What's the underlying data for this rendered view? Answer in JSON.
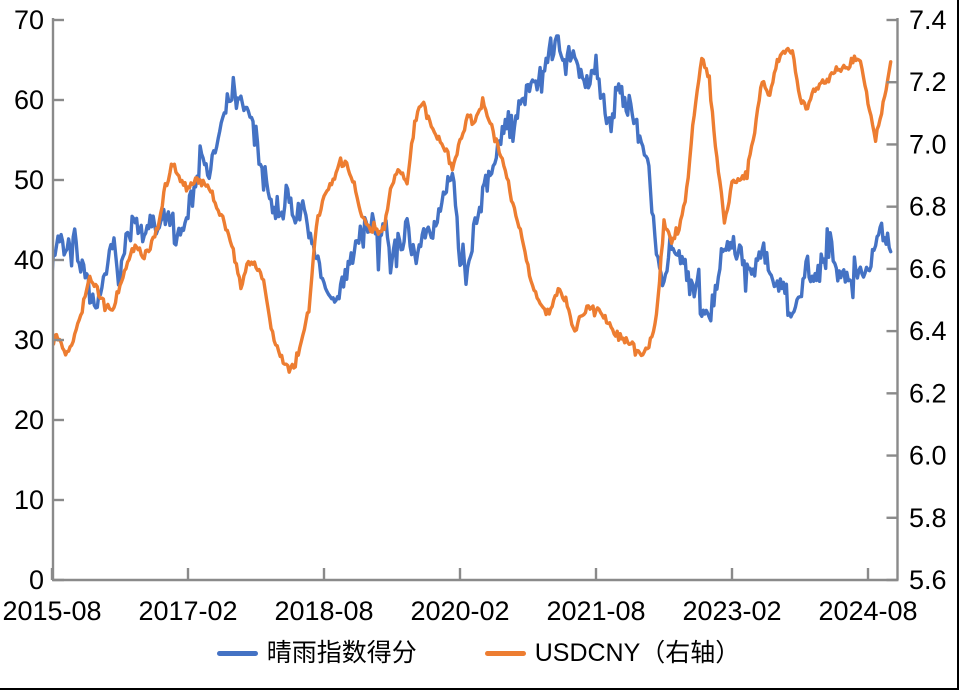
{
  "style": {
    "background": "#ffffff",
    "axis_color": "#8a8a8a",
    "label_color": "#000000",
    "page_border_color": "#000000",
    "series_blue": "#4472C4",
    "series_orange": "#ED7D31"
  },
  "legend": {
    "items": [
      {
        "label": "晴雨指数得分",
        "color": "#4472C4"
      },
      {
        "label": "USDCNY（右轴）",
        "color": "#ED7D31"
      }
    ]
  },
  "chart_data": {
    "type": "line",
    "title": "",
    "grid": false,
    "legend_position": "bottom-center",
    "x_axis": {
      "start_month": "2015-08",
      "end_month": "2024-11",
      "tick_labels": [
        "2015-08",
        "2017-02",
        "2018-08",
        "2020-02",
        "2021-08",
        "2023-02",
        "2024-08"
      ],
      "months_between_ticks": 18
    },
    "left_axis": {
      "min": 0,
      "max": 70,
      "ticks": [
        0,
        10,
        20,
        30,
        40,
        50,
        60,
        70
      ]
    },
    "right_axis": {
      "min": 5.6,
      "max": 7.4,
      "ticks": [
        5.6,
        5.8,
        6.0,
        6.2,
        6.4,
        6.6,
        6.8,
        7.0,
        7.2,
        7.4
      ]
    },
    "series": [
      {
        "name": "晴雨指数得分",
        "axis": "left",
        "color": "#4472C4",
        "start_month": "2015-08",
        "frequency": "monthly",
        "values": [
          40,
          43,
          41,
          43,
          39,
          35,
          33,
          38,
          42,
          39,
          43,
          45,
          42,
          45,
          43,
          46,
          44,
          43,
          46,
          50,
          53,
          51,
          55,
          59,
          61,
          60,
          58,
          55,
          50,
          47,
          46,
          48,
          45,
          47,
          43,
          40,
          37,
          35,
          36,
          39,
          41,
          43,
          45,
          42,
          45,
          40,
          42,
          44,
          41,
          43,
          42,
          45,
          49,
          51,
          41,
          38,
          44,
          48,
          51,
          54,
          57,
          56,
          59,
          62,
          61,
          63,
          66,
          67,
          65,
          66,
          63,
          62,
          64,
          60,
          57,
          62,
          60,
          58,
          55,
          52,
          41,
          38,
          42,
          41,
          38,
          37,
          34,
          33,
          37,
          42,
          43,
          41,
          38,
          39,
          41,
          38,
          37,
          36,
          33,
          36,
          39,
          37,
          40,
          42,
          38,
          39,
          37,
          40,
          38,
          42,
          44,
          40
        ]
      },
      {
        "name": "USDCNY（右轴）",
        "axis": "right",
        "color": "#ED7D31",
        "start_month": "2015-08",
        "frequency": "monthly",
        "values": [
          6.4,
          6.37,
          6.33,
          6.39,
          6.47,
          6.57,
          6.53,
          6.48,
          6.47,
          6.54,
          6.62,
          6.68,
          6.64,
          6.67,
          6.74,
          6.86,
          6.94,
          6.88,
          6.86,
          6.89,
          6.88,
          6.85,
          6.79,
          6.74,
          6.66,
          6.54,
          6.62,
          6.61,
          6.57,
          6.41,
          6.33,
          6.29,
          6.28,
          6.37,
          6.47,
          6.74,
          6.84,
          6.87,
          6.95,
          6.93,
          6.87,
          6.77,
          6.73,
          6.71,
          6.73,
          6.88,
          6.92,
          6.88,
          7.07,
          7.14,
          7.07,
          7.02,
          6.99,
          6.92,
          7.01,
          7.09,
          7.07,
          7.14,
          7.07,
          7.0,
          6.92,
          6.8,
          6.72,
          6.6,
          6.53,
          6.47,
          6.46,
          6.54,
          6.5,
          6.41,
          6.44,
          6.48,
          6.47,
          6.45,
          6.41,
          6.38,
          6.37,
          6.35,
          6.33,
          6.34,
          6.45,
          6.75,
          6.68,
          6.73,
          6.85,
          7.1,
          7.28,
          7.2,
          6.95,
          6.75,
          6.88,
          6.89,
          6.91,
          7.05,
          7.2,
          7.16,
          7.27,
          7.31,
          7.3,
          7.15,
          7.12,
          7.18,
          7.2,
          7.22,
          7.24,
          7.25,
          7.27,
          7.26,
          7.14,
          7.02,
          7.13,
          7.26
        ]
      }
    ]
  }
}
